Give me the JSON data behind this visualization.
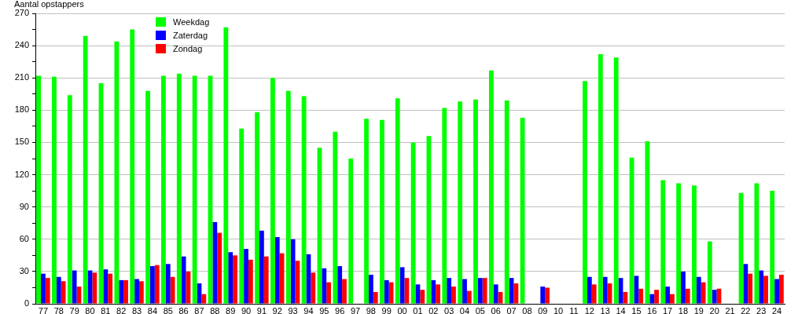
{
  "chart_data": {
    "type": "bar",
    "ylabel": "Aantal opstappers",
    "categories": [
      "77",
      "78",
      "79",
      "80",
      "81",
      "82",
      "83",
      "84",
      "85",
      "86",
      "87",
      "88",
      "89",
      "90",
      "91",
      "92",
      "93",
      "94",
      "95",
      "96",
      "97",
      "98",
      "99",
      "00",
      "01",
      "02",
      "03",
      "04",
      "05",
      "06",
      "07",
      "08",
      "09",
      "10",
      "11",
      "12",
      "13",
      "14",
      "15",
      "16",
      "17",
      "18",
      "19",
      "20",
      "21",
      "22",
      "23",
      "24"
    ],
    "series": [
      {
        "name": "Weekdag",
        "color": "#00ff00",
        "values": [
          212,
          211,
          194,
          249,
          205,
          244,
          255,
          198,
          212,
          214,
          212,
          212,
          257,
          163,
          178,
          210,
          198,
          193,
          145,
          160,
          135,
          172,
          171,
          191,
          150,
          156,
          182,
          188,
          190,
          217,
          189,
          173,
          null,
          null,
          null,
          207,
          232,
          229,
          136,
          151,
          115,
          112,
          110,
          58,
          null,
          103,
          112,
          105
        ]
      },
      {
        "name": "Zaterdag",
        "color": "#0000ff",
        "values": [
          28,
          25,
          31,
          31,
          32,
          22,
          23,
          35,
          37,
          44,
          19,
          76,
          48,
          51,
          68,
          62,
          60,
          46,
          33,
          35,
          null,
          27,
          22,
          34,
          18,
          22,
          24,
          23,
          24,
          18,
          24,
          null,
          16,
          null,
          null,
          25,
          25,
          24,
          26,
          9,
          16,
          30,
          25,
          13,
          null,
          37,
          31,
          23
        ]
      },
      {
        "name": "Zondag",
        "color": "#ff0000",
        "values": [
          24,
          21,
          16,
          29,
          28,
          22,
          21,
          36,
          25,
          30,
          9,
          66,
          45,
          41,
          44,
          47,
          40,
          29,
          20,
          23,
          null,
          11,
          20,
          24,
          13,
          18,
          16,
          12,
          24,
          11,
          19,
          null,
          15,
          null,
          null,
          18,
          19,
          11,
          14,
          13,
          9,
          14,
          20,
          14,
          null,
          28,
          26,
          27
        ]
      }
    ],
    "ylim": [
      0,
      270
    ],
    "yticks": [
      0,
      {
        "value": 15,
        "label": null
      },
      30,
      {
        "value": 45,
        "label": null
      },
      60,
      {
        "value": 75,
        "label": null
      },
      90,
      {
        "value": 105,
        "label": null
      },
      120,
      {
        "value": 135,
        "label": null
      },
      150,
      {
        "value": 165,
        "label": null
      },
      180,
      {
        "value": 195,
        "label": null
      },
      210,
      {
        "value": 225,
        "label": null
      },
      240,
      {
        "value": 255,
        "label": null
      },
      270
    ],
    "grid": "y",
    "legend": "top left"
  }
}
